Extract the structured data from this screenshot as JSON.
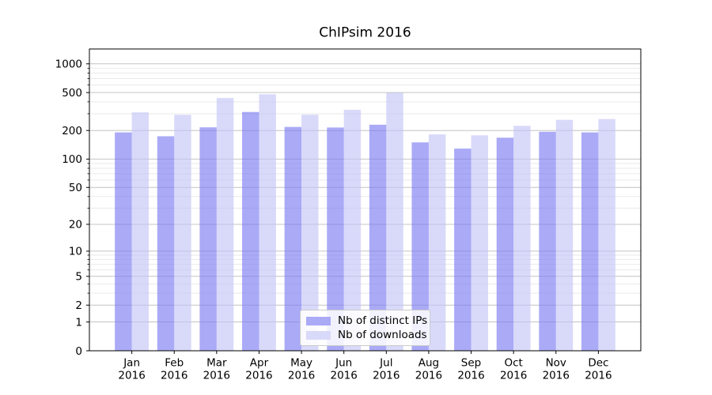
{
  "chart_data": {
    "type": "bar",
    "title": "ChIPsim 2016",
    "categories": [
      {
        "month": "Jan",
        "year": "2016"
      },
      {
        "month": "Feb",
        "year": "2016"
      },
      {
        "month": "Mar",
        "year": "2016"
      },
      {
        "month": "Apr",
        "year": "2016"
      },
      {
        "month": "May",
        "year": "2016"
      },
      {
        "month": "Jun",
        "year": "2016"
      },
      {
        "month": "Jul",
        "year": "2016"
      },
      {
        "month": "Aug",
        "year": "2016"
      },
      {
        "month": "Sep",
        "year": "2016"
      },
      {
        "month": "Oct",
        "year": "2016"
      },
      {
        "month": "Nov",
        "year": "2016"
      },
      {
        "month": "Dec",
        "year": "2016"
      }
    ],
    "series": [
      {
        "name": "Nb of distinct IPs",
        "key": "distinct-ips",
        "color": "#7676f2",
        "fill_opacity": 0.62,
        "values": [
          191,
          174,
          216,
          313,
          218,
          215,
          230,
          150,
          129,
          168,
          194,
          191
        ]
      },
      {
        "name": "Nb of downloads",
        "key": "downloads",
        "color": "#c2c2f7",
        "fill_opacity": 0.62,
        "values": [
          310,
          292,
          438,
          480,
          293,
          330,
          497,
          182,
          178,
          224,
          259,
          264
        ]
      }
    ],
    "y_axis": {
      "scale": "log1p",
      "major_ticks": [
        0,
        1,
        2,
        5,
        10,
        20,
        50,
        100,
        200,
        500,
        1000
      ],
      "minor_ticks": [
        3,
        4,
        6,
        7,
        8,
        9,
        30,
        40,
        60,
        70,
        80,
        90,
        300,
        400,
        600,
        700,
        800,
        900
      ],
      "ylim": [
        0,
        1430
      ]
    },
    "grid": {
      "major_color": "#c4c4c4",
      "minor_color": "#e9e9e9",
      "on": true
    },
    "legend": {
      "position": "lower center"
    }
  }
}
